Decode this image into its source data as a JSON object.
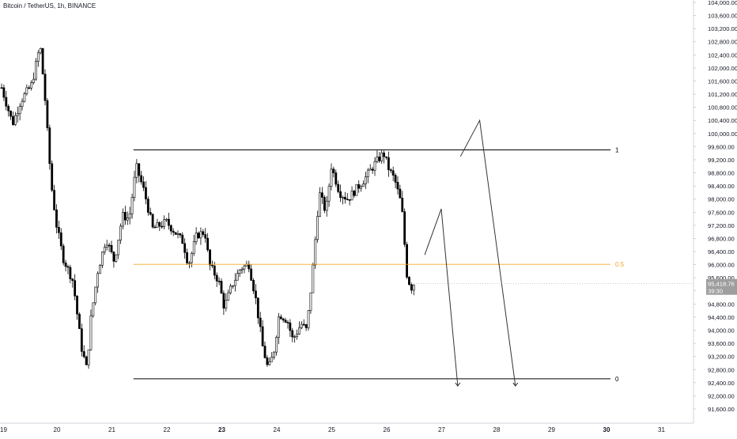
{
  "header": {
    "symbol_title": "Bitcoin / TetherUS, 1h, BINANCE"
  },
  "price_axis": {
    "tick_labels": [
      "104,000.00",
      "103,600.00",
      "103,200.00",
      "102,800.00",
      "102,400.00",
      "102,000.00",
      "101,600.00",
      "101,200.00",
      "100,800.00",
      "100,400.00",
      "100,000.00",
      "99,600.00",
      "99,200.00",
      "98,800.00",
      "98,400.00",
      "98,000.00",
      "97,600.00",
      "97,200.00",
      "96,800.00",
      "96,400.00",
      "96,000.00",
      "95,600.00",
      "95,200.00",
      "94,800.00",
      "94,400.00",
      "94,000.00",
      "93,600.00",
      "93,200.00",
      "92,800.00",
      "92,400.00",
      "92,000.00",
      "91,600.00"
    ],
    "last_price_label": "95,418.76",
    "countdown_label": "39:30",
    "label_color": "#131722",
    "last_price_bg": "#9e9e9e"
  },
  "time_axis": {
    "labels": [
      {
        "text": "19",
        "value": 19,
        "bold": false
      },
      {
        "text": "20",
        "value": 20,
        "bold": false
      },
      {
        "text": "21",
        "value": 21,
        "bold": false
      },
      {
        "text": "22",
        "value": 22,
        "bold": false
      },
      {
        "text": "23",
        "value": 23,
        "bold": true
      },
      {
        "text": "24",
        "value": 24,
        "bold": false
      },
      {
        "text": "25",
        "value": 25,
        "bold": false
      },
      {
        "text": "26",
        "value": 26,
        "bold": false
      },
      {
        "text": "27",
        "value": 27,
        "bold": false
      },
      {
        "text": "28",
        "value": 28,
        "bold": false
      },
      {
        "text": "29",
        "value": 29,
        "bold": false
      },
      {
        "text": "30",
        "value": 30,
        "bold": true
      },
      {
        "text": "31",
        "value": 31,
        "bold": false
      }
    ]
  },
  "chart_data": {
    "type": "candlestick",
    "title": "Bitcoin / TetherUS, 1h, BINANCE",
    "x_unit": "day",
    "xlim": [
      19.0,
      31.6
    ],
    "ylim": [
      91200,
      104200
    ],
    "grid": false,
    "candle_color": "#000000",
    "anchors": [
      [
        19.0,
        101400
      ],
      [
        19.2,
        100300
      ],
      [
        19.35,
        101000
      ],
      [
        19.55,
        101500
      ],
      [
        19.7,
        102700
      ],
      [
        19.78,
        101300
      ],
      [
        19.9,
        98500
      ],
      [
        20.0,
        97200
      ],
      [
        20.12,
        96200
      ],
      [
        20.3,
        95500
      ],
      [
        20.45,
        93500
      ],
      [
        20.55,
        92800
      ],
      [
        20.62,
        94300
      ],
      [
        20.75,
        95800
      ],
      [
        20.9,
        96800
      ],
      [
        21.05,
        96100
      ],
      [
        21.2,
        97500
      ],
      [
        21.32,
        97400
      ],
      [
        21.45,
        99000
      ],
      [
        21.6,
        98200
      ],
      [
        21.75,
        97100
      ],
      [
        22.0,
        97300
      ],
      [
        22.15,
        97000
      ],
      [
        22.3,
        96700
      ],
      [
        22.4,
        96000
      ],
      [
        22.55,
        96900
      ],
      [
        22.7,
        97000
      ],
      [
        22.78,
        96000
      ],
      [
        22.95,
        95500
      ],
      [
        23.05,
        94700
      ],
      [
        23.2,
        95400
      ],
      [
        23.35,
        95900
      ],
      [
        23.5,
        96000
      ],
      [
        23.62,
        95000
      ],
      [
        23.75,
        93500
      ],
      [
        23.85,
        92800
      ],
      [
        23.95,
        93300
      ],
      [
        24.05,
        94500
      ],
      [
        24.2,
        94300
      ],
      [
        24.3,
        93700
      ],
      [
        24.45,
        94200
      ],
      [
        24.55,
        94000
      ],
      [
        24.65,
        95600
      ],
      [
        24.78,
        98200
      ],
      [
        24.9,
        97600
      ],
      [
        25.0,
        99000
      ],
      [
        25.15,
        98200
      ],
      [
        25.3,
        98000
      ],
      [
        25.45,
        98300
      ],
      [
        25.6,
        98600
      ],
      [
        25.8,
        99100
      ],
      [
        25.95,
        99400
      ],
      [
        26.05,
        98900
      ],
      [
        26.15,
        98600
      ],
      [
        26.28,
        97800
      ],
      [
        26.38,
        95600
      ],
      [
        26.46,
        95300
      ],
      [
        26.5,
        95419
      ]
    ],
    "levels": [
      {
        "label": "1",
        "value": 99500,
        "x_start": 21.4,
        "color": "#000000"
      },
      {
        "label": "0.5",
        "value": 96010,
        "x_start": 21.4,
        "color": "#f5a623"
      },
      {
        "label": "0",
        "value": 92520,
        "x_start": 21.4,
        "color": "#000000"
      }
    ],
    "projection_paths": [
      {
        "name": "path-a",
        "points": [
          [
            26.7,
            96300
          ],
          [
            27.0,
            97700
          ],
          [
            27.3,
            92300
          ]
        ],
        "arrow": "down"
      },
      {
        "name": "path-b",
        "points": [
          [
            27.35,
            99300
          ],
          [
            27.7,
            100400
          ],
          [
            28.35,
            92300
          ]
        ],
        "arrow": "down"
      }
    ],
    "last_price": 95418.76
  }
}
